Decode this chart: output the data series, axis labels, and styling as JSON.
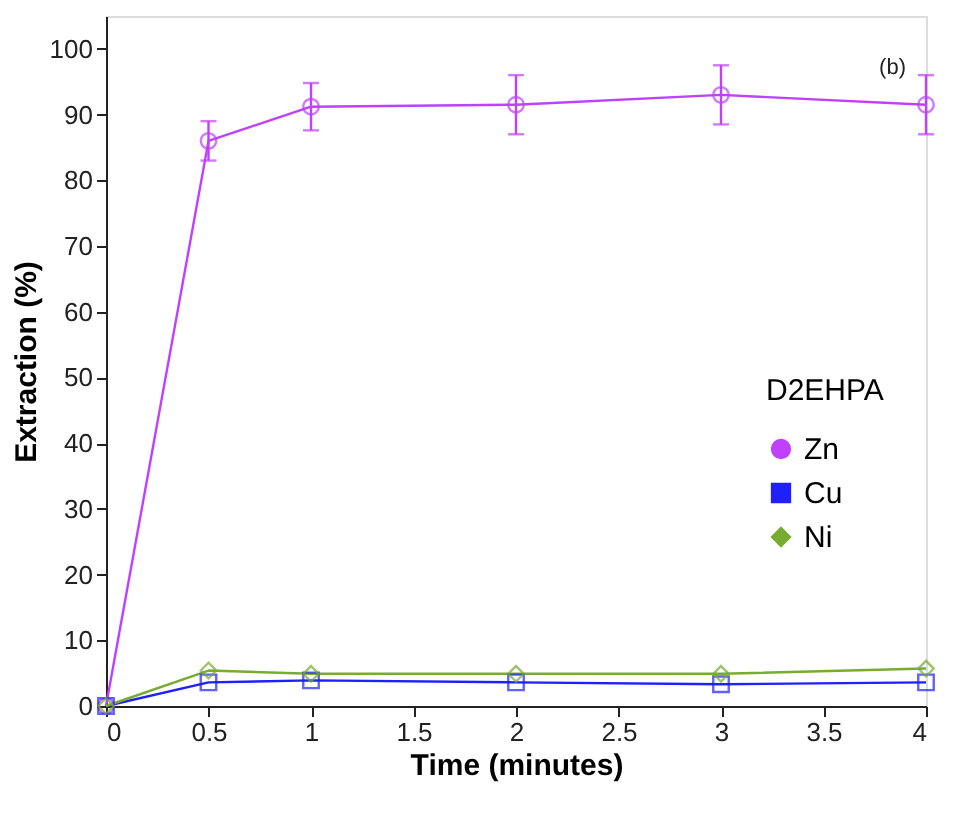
{
  "chart_data": {
    "type": "line",
    "xlabel": "Time (minutes)",
    "ylabel": "Extraction (%)",
    "legend_title": "D2EHPA",
    "x": [
      0,
      0.5,
      1,
      2,
      3,
      4
    ],
    "series": [
      {
        "name": "Zn",
        "color": "#bf40ff",
        "marker": "circle",
        "values": [
          0,
          86,
          91.2,
          91.5,
          93,
          91.5
        ],
        "errors": [
          null,
          3,
          3.6,
          4.5,
          4.5,
          4.5
        ]
      },
      {
        "name": "Cu",
        "color": "#1f1fff",
        "marker": "square",
        "values": [
          0,
          3.6,
          3.9,
          3.6,
          3.3,
          3.6
        ]
      },
      {
        "name": "Ni",
        "color": "#77ac30",
        "marker": "diamond",
        "values": [
          0,
          5.4,
          4.9,
          4.9,
          4.9,
          5.7
        ]
      }
    ],
    "xlim": [
      0,
      4
    ],
    "xticks": [
      0,
      0.5,
      1,
      1.5,
      2,
      2.5,
      3,
      3.5,
      4
    ],
    "ylim": [
      0,
      105
    ],
    "yticks": [
      0,
      10,
      20,
      30,
      40,
      50,
      60,
      70,
      80,
      90,
      100
    ],
    "grid": false,
    "legend": "right",
    "line_style": "solid",
    "annotations": [
      "(b)"
    ]
  }
}
